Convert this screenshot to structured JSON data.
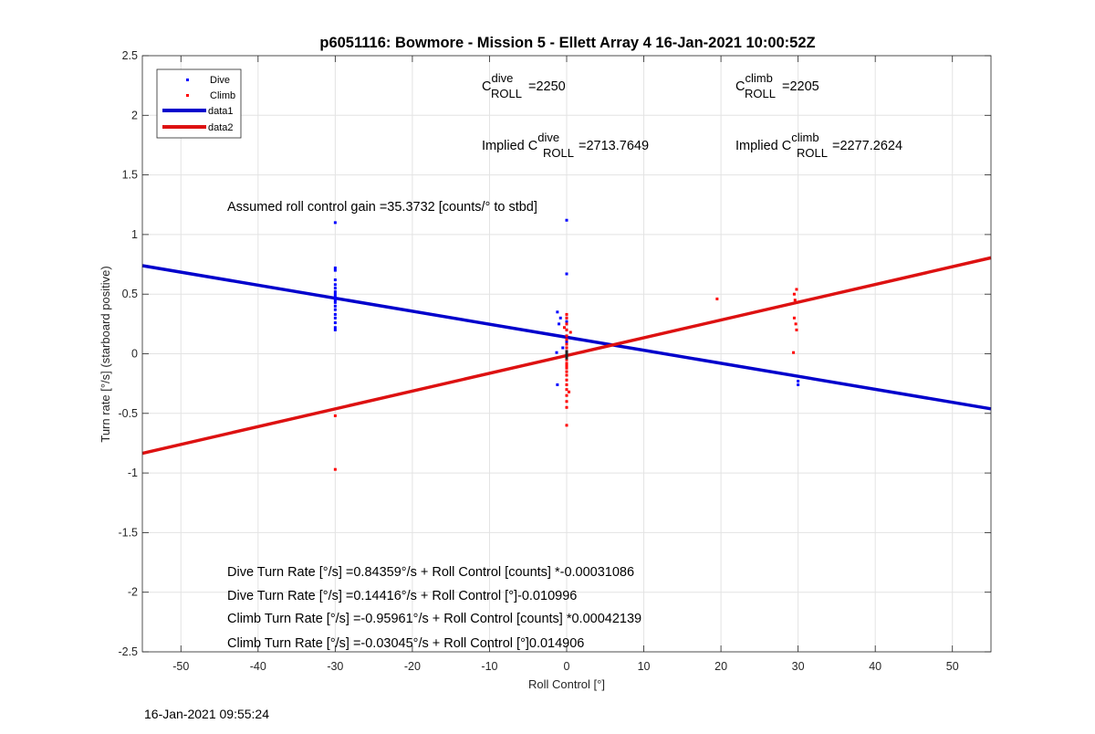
{
  "chart_data": {
    "type": "scatter",
    "title": "p6051116: Bowmore - Mission 5 - Ellett Array 4 16-Jan-2021 10:00:52Z",
    "xlabel": "Roll Control [°]",
    "ylabel": "Turn rate [°/s] (starboard positive)",
    "xlim": [
      -55,
      55
    ],
    "ylim": [
      -2.5,
      2.5
    ],
    "xticks": [
      -50,
      -40,
      -30,
      -20,
      -10,
      0,
      10,
      20,
      30,
      40,
      50
    ],
    "yticks": [
      -2.5,
      -2,
      -1.5,
      -1,
      -0.5,
      0,
      0.5,
      1,
      1.5,
      2,
      2.5
    ],
    "grid": true,
    "legend_position": "top-left",
    "legend": [
      "Dive",
      "Climb",
      "data1",
      "data2"
    ],
    "series": [
      {
        "name": "Dive",
        "kind": "points",
        "color": "#0000ff",
        "points": [
          [
            -30,
            1.1
          ],
          [
            -30,
            0.72
          ],
          [
            -30,
            0.7
          ],
          [
            -30,
            0.62
          ],
          [
            -30,
            0.58
          ],
          [
            -30,
            0.55
          ],
          [
            -30,
            0.52
          ],
          [
            -30,
            0.5
          ],
          [
            -30,
            0.48
          ],
          [
            -30,
            0.46
          ],
          [
            -30,
            0.45
          ],
          [
            -30,
            0.43
          ],
          [
            -30,
            0.4
          ],
          [
            -30,
            0.37
          ],
          [
            -30,
            0.33
          ],
          [
            -30,
            0.3
          ],
          [
            -30,
            0.26
          ],
          [
            -30,
            0.22
          ],
          [
            -30,
            0.2
          ],
          [
            0,
            1.12
          ],
          [
            0,
            0.67
          ],
          [
            0,
            0.3
          ],
          [
            0,
            0.27
          ],
          [
            0,
            0.25
          ],
          [
            0,
            0.2
          ],
          [
            0,
            0.15
          ],
          [
            0,
            0.1
          ],
          [
            0,
            0.05
          ],
          [
            0,
            0.02
          ],
          [
            0,
            0.0
          ],
          [
            0,
            -0.02
          ],
          [
            0,
            -0.05
          ],
          [
            0,
            -0.1
          ],
          [
            -1.2,
            0.35
          ],
          [
            -1.0,
            0.25
          ],
          [
            -0.8,
            0.3
          ],
          [
            -1.3,
            0.01
          ],
          [
            -1.2,
            -0.26
          ],
          [
            -0.5,
            0.05
          ],
          [
            30,
            -0.23
          ],
          [
            30,
            -0.26
          ]
        ]
      },
      {
        "name": "Climb",
        "kind": "points",
        "color": "#ff0000",
        "points": [
          [
            -30,
            -0.52
          ],
          [
            -30,
            -0.97
          ],
          [
            0,
            0.33
          ],
          [
            0,
            0.3
          ],
          [
            0,
            0.25
          ],
          [
            0,
            0.2
          ],
          [
            0,
            0.15
          ],
          [
            0,
            0.12
          ],
          [
            0,
            0.08
          ],
          [
            0,
            0.05
          ],
          [
            0,
            0.02
          ],
          [
            0,
            -0.02
          ],
          [
            0,
            -0.05
          ],
          [
            0,
            -0.08
          ],
          [
            0,
            -0.1
          ],
          [
            0,
            -0.12
          ],
          [
            0,
            -0.15
          ],
          [
            0,
            -0.18
          ],
          [
            0,
            -0.22
          ],
          [
            0,
            -0.26
          ],
          [
            0,
            -0.3
          ],
          [
            0,
            -0.35
          ],
          [
            0,
            -0.4
          ],
          [
            0,
            -0.45
          ],
          [
            0,
            -0.6
          ],
          [
            -0.3,
            0.22
          ],
          [
            0.5,
            0.18
          ],
          [
            0.3,
            -0.32
          ],
          [
            19.5,
            0.46
          ],
          [
            29.5,
            0.5
          ],
          [
            29.8,
            0.54
          ],
          [
            29.6,
            0.45
          ],
          [
            29.5,
            0.3
          ],
          [
            29.7,
            0.25
          ],
          [
            29.8,
            0.2
          ],
          [
            29.4,
            0.01
          ]
        ]
      },
      {
        "name": "data1",
        "kind": "line",
        "color": "#0000cc",
        "x": [
          -55,
          55
        ],
        "y": [
          0.7389,
          -0.4618
        ]
      },
      {
        "name": "data2",
        "kind": "line",
        "color": "#dd1111",
        "x": [
          -55,
          55
        ],
        "y": [
          -0.8349,
          0.8049
        ]
      }
    ],
    "annotations": {
      "c_dive_base": "C",
      "c_dive_sup": "dive",
      "c_dive_sub": "ROLL",
      "c_dive_val": "=2250",
      "c_climb_base": "C",
      "c_climb_sup": "climb",
      "c_climb_sub": "ROLL",
      "c_climb_val": "=2205",
      "implied_dive_prefix": "Implied C",
      "implied_dive_sup": "dive",
      "implied_dive_sub": "ROLL",
      "implied_dive_val": "=2713.7649",
      "implied_climb_prefix": "Implied C",
      "implied_climb_sup": "climb",
      "implied_climb_sub": "ROLL",
      "implied_climb_val": "=2277.2624",
      "gain": "Assumed roll control gain =35.3732 [counts/° to stbd]",
      "eq1": "Dive Turn Rate [°/s] =0.84359°/s + Roll Control [counts] *-0.00031086",
      "eq2": "Dive Turn Rate [°/s] =0.14416°/s + Roll Control [°]-0.010996",
      "eq3": "Climb Turn Rate [°/s] =-0.95961°/s + Roll Control [counts] *0.00042139",
      "eq4": "Climb Turn Rate [°/s] =-0.03045°/s + Roll Control [°]0.014906"
    },
    "footer_timestamp": "16-Jan-2021 09:55:24"
  }
}
